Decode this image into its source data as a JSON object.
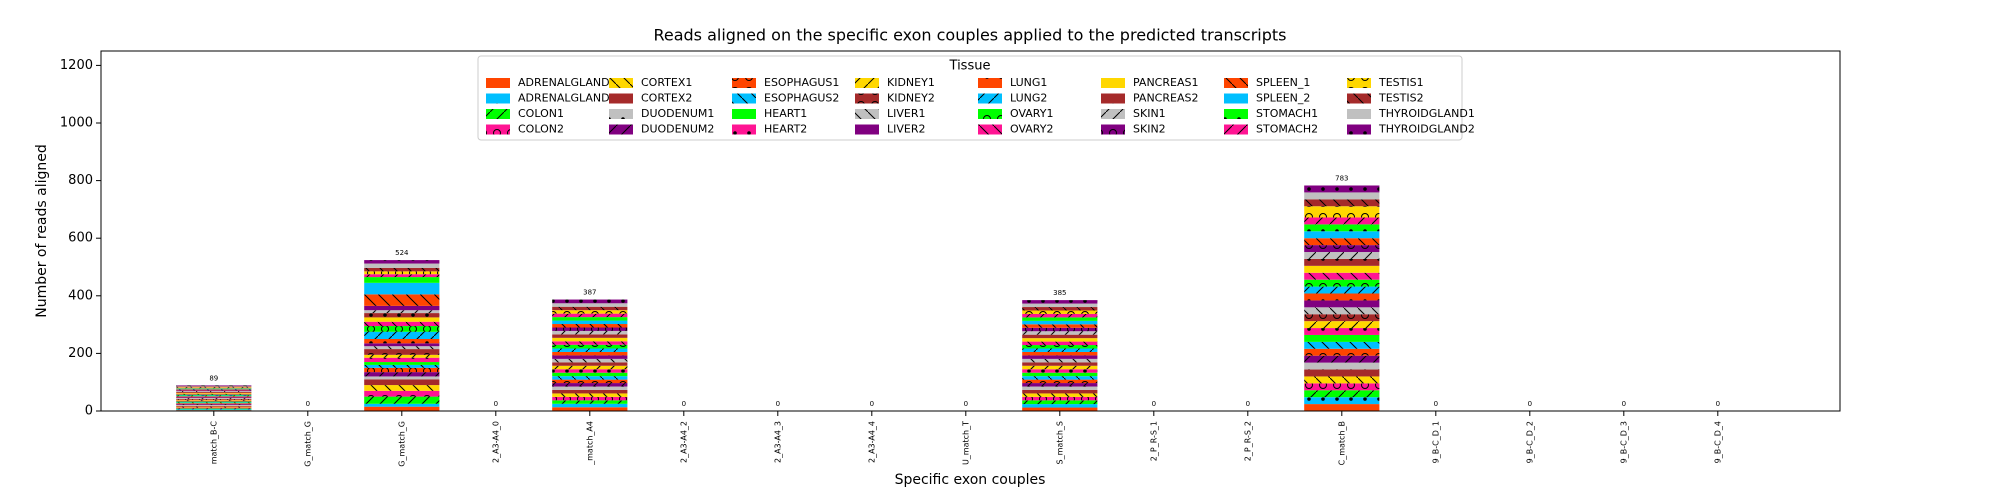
{
  "chart_data": {
    "type": "stacked_bar",
    "title": "Reads aligned on the specific exon couples applied to the predicted transcripts",
    "x_label": "Specific exon couples",
    "y_label": "Number of reads aligned",
    "legend_title": "Tissue",
    "legend_position": "upper center",
    "categories": [
      "match_B-C",
      "G_match_G",
      "G_match_G",
      "2_A3-A4_0",
      "_match_A4",
      "2_A3-A4_2",
      "2_A3-A4_3",
      "2_A3-A4_4",
      "U_match_T",
      "S_match_S",
      "2_P_R-S_1",
      "2_P_R-S_2",
      "C_match_B",
      "9_B-C_D_1",
      "9_B-C_D_2",
      "9_B-C_D_3",
      "9_B-C_D_4"
    ],
    "totals": [
      89,
      0,
      524,
      0,
      387,
      0,
      0,
      0,
      0,
      385,
      0,
      0,
      783,
      0,
      0,
      0,
      0
    ],
    "ylim": [
      0,
      1250
    ],
    "yticks": [
      0,
      200,
      400,
      600,
      800,
      1000,
      1200
    ],
    "series": [
      {
        "name": "ADRENALGLAND1",
        "color": "#ff4500",
        "values": [
          3,
          0,
          15,
          0,
          13,
          0,
          0,
          0,
          0,
          12,
          0,
          0,
          24,
          0,
          0,
          0,
          0
        ]
      },
      {
        "name": "ADRENALGLAND2",
        "color": "#00bfff",
        "values": [
          3,
          0,
          10,
          0,
          12,
          0,
          0,
          0,
          0,
          12,
          0,
          0,
          24,
          0,
          0,
          0,
          0
        ]
      },
      {
        "name": "COLON1",
        "color": "#00ff00",
        "values": [
          3,
          0,
          25,
          0,
          12,
          0,
          0,
          0,
          0,
          13,
          0,
          0,
          24,
          0,
          0,
          0,
          0
        ]
      },
      {
        "name": "COLON2",
        "color": "#ff1493",
        "values": [
          3,
          0,
          20,
          0,
          12,
          0,
          0,
          0,
          0,
          12,
          0,
          0,
          24,
          0,
          0,
          0,
          0
        ]
      },
      {
        "name": "CORTEX1",
        "color": "#ffd700",
        "values": [
          3,
          0,
          20,
          0,
          12,
          0,
          0,
          0,
          0,
          12,
          0,
          0,
          24,
          0,
          0,
          0,
          0
        ]
      },
      {
        "name": "CORTEX2",
        "color": "#a52a2a",
        "values": [
          3,
          0,
          20,
          0,
          12,
          0,
          0,
          0,
          0,
          12,
          0,
          0,
          24,
          0,
          0,
          0,
          0
        ]
      },
      {
        "name": "DUODENUM1",
        "color": "#c0c0c0",
        "values": [
          3,
          0,
          10,
          0,
          12,
          0,
          0,
          0,
          0,
          12,
          0,
          0,
          24,
          0,
          0,
          0,
          0
        ]
      },
      {
        "name": "DUODENUM2",
        "color": "#800080",
        "values": [
          3,
          0,
          15,
          0,
          12,
          0,
          0,
          0,
          0,
          12,
          0,
          0,
          24,
          0,
          0,
          0,
          0
        ]
      },
      {
        "name": "ESOPHAGUS1",
        "color": "#ff4500",
        "values": [
          3,
          0,
          15,
          0,
          12,
          0,
          0,
          0,
          0,
          12,
          0,
          0,
          24,
          0,
          0,
          0,
          0
        ]
      },
      {
        "name": "ESOPHAGUS2",
        "color": "#00bfff",
        "values": [
          3,
          0,
          10,
          0,
          12,
          0,
          0,
          0,
          0,
          12,
          0,
          0,
          24,
          0,
          0,
          0,
          0
        ]
      },
      {
        "name": "HEART1",
        "color": "#00ff00",
        "values": [
          3,
          0,
          10,
          0,
          12,
          0,
          0,
          0,
          0,
          12,
          0,
          0,
          24,
          0,
          0,
          0,
          0
        ]
      },
      {
        "name": "HEART2",
        "color": "#ff1493",
        "values": [
          3,
          0,
          15,
          0,
          12,
          0,
          0,
          0,
          0,
          12,
          0,
          0,
          24,
          0,
          0,
          0,
          0
        ]
      },
      {
        "name": "KIDNEY1",
        "color": "#ffd700",
        "values": [
          3,
          0,
          10,
          0,
          12,
          0,
          0,
          0,
          0,
          12,
          0,
          0,
          24,
          0,
          0,
          0,
          0
        ]
      },
      {
        "name": "KIDNEY2",
        "color": "#a52a2a",
        "values": [
          3,
          0,
          20,
          0,
          12,
          0,
          0,
          0,
          0,
          12,
          0,
          0,
          24,
          0,
          0,
          0,
          0
        ]
      },
      {
        "name": "LIVER1",
        "color": "#c0c0c0",
        "values": [
          3,
          0,
          10,
          0,
          12,
          0,
          0,
          0,
          0,
          12,
          0,
          0,
          24,
          0,
          0,
          0,
          0
        ]
      },
      {
        "name": "LIVER2",
        "color": "#800080",
        "values": [
          3,
          0,
          10,
          0,
          12,
          0,
          0,
          0,
          0,
          12,
          0,
          0,
          24,
          0,
          0,
          0,
          0
        ]
      },
      {
        "name": "LUNG1",
        "color": "#ff4500",
        "values": [
          3,
          0,
          15,
          0,
          12,
          0,
          0,
          0,
          0,
          12,
          0,
          0,
          24,
          0,
          0,
          0,
          0
        ]
      },
      {
        "name": "LUNG2",
        "color": "#00bfff",
        "values": [
          3,
          0,
          25,
          0,
          12,
          0,
          0,
          0,
          0,
          12,
          0,
          0,
          24,
          0,
          0,
          0,
          0
        ]
      },
      {
        "name": "OVARY1",
        "color": "#00ff00",
        "values": [
          3,
          0,
          20,
          0,
          13,
          0,
          0,
          0,
          0,
          12,
          0,
          0,
          24,
          0,
          0,
          0,
          0
        ]
      },
      {
        "name": "OVARY2",
        "color": "#ff1493",
        "values": [
          3,
          0,
          15,
          0,
          12,
          0,
          0,
          0,
          0,
          12,
          0,
          0,
          24,
          0,
          0,
          0,
          0
        ]
      },
      {
        "name": "PANCREAS1",
        "color": "#ffd700",
        "values": [
          3,
          0,
          15,
          0,
          12,
          0,
          0,
          0,
          0,
          12,
          0,
          0,
          24,
          0,
          0,
          0,
          0
        ]
      },
      {
        "name": "PANCREAS2",
        "color": "#a52a2a",
        "values": [
          3,
          0,
          15,
          0,
          12,
          0,
          0,
          0,
          0,
          12,
          0,
          0,
          24,
          0,
          0,
          0,
          0
        ]
      },
      {
        "name": "SKIN1",
        "color": "#c0c0c0",
        "values": [
          3,
          0,
          10,
          0,
          12,
          0,
          0,
          0,
          0,
          12,
          0,
          0,
          24,
          0,
          0,
          0,
          0
        ]
      },
      {
        "name": "SKIN2",
        "color": "#800080",
        "values": [
          3,
          0,
          15,
          0,
          12,
          0,
          0,
          0,
          0,
          12,
          0,
          0,
          24,
          0,
          0,
          0,
          0
        ]
      },
      {
        "name": "SPLEEN_1",
        "color": "#ff4500",
        "values": [
          3,
          0,
          40,
          0,
          12,
          0,
          0,
          0,
          0,
          12,
          0,
          0,
          24,
          0,
          0,
          0,
          0
        ]
      },
      {
        "name": "SPLEEN_2",
        "color": "#00bfff",
        "values": [
          2,
          0,
          40,
          0,
          12,
          0,
          0,
          0,
          0,
          12,
          0,
          0,
          24,
          0,
          0,
          0,
          0
        ]
      },
      {
        "name": "STOMACH1",
        "color": "#00ff00",
        "values": [
          2,
          0,
          20,
          0,
          12,
          0,
          0,
          0,
          0,
          12,
          0,
          0,
          24,
          0,
          0,
          0,
          0
        ]
      },
      {
        "name": "STOMACH2",
        "color": "#ff1493",
        "values": [
          2,
          0,
          10,
          0,
          12,
          0,
          0,
          0,
          0,
          12,
          0,
          0,
          24,
          0,
          0,
          0,
          0
        ]
      },
      {
        "name": "TESTIS1",
        "color": "#ffd700",
        "values": [
          2,
          0,
          10,
          0,
          12,
          0,
          0,
          0,
          0,
          12,
          0,
          0,
          39,
          0,
          0,
          0,
          0
        ]
      },
      {
        "name": "TESTIS2",
        "color": "#a52a2a",
        "values": [
          2,
          0,
          12,
          0,
          12,
          0,
          0,
          0,
          0,
          12,
          0,
          0,
          24,
          0,
          0,
          0,
          0
        ]
      },
      {
        "name": "THYROIDGLAND1",
        "color": "#c0c0c0",
        "values": [
          2,
          0,
          15,
          0,
          12,
          0,
          0,
          0,
          0,
          12,
          0,
          0,
          24,
          0,
          0,
          0,
          0
        ]
      },
      {
        "name": "THYROIDGLAND2",
        "color": "#800080",
        "values": [
          2,
          0,
          12,
          0,
          13,
          0,
          0,
          0,
          0,
          12,
          0,
          0,
          24,
          0,
          0,
          0,
          0
        ]
      }
    ]
  }
}
